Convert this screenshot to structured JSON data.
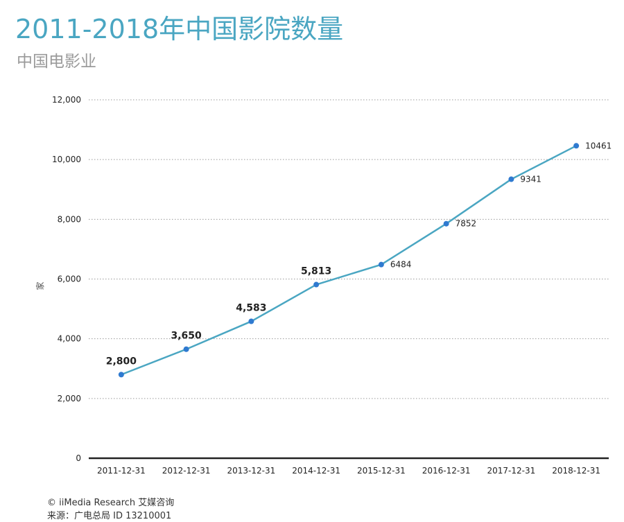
{
  "header": {
    "title": "2011-2018年中国影院数量",
    "subtitle": "中国电影业"
  },
  "footer": {
    "copyright": "© iiMedia Research 艾媒咨询",
    "source": "来源：广电总局  ID 13210001"
  },
  "chart_data": {
    "type": "line",
    "title": "2011-2018年中国影院数量",
    "subtitle": "中国电影业",
    "ylabel": "家",
    "xlabel": "",
    "ylim": [
      0,
      12000
    ],
    "y_ticks": [
      0,
      2000,
      4000,
      6000,
      8000,
      10000,
      12000
    ],
    "y_tick_labels": [
      "0",
      "2,000",
      "4,000",
      "6,000",
      "8,000",
      "10,000",
      "12,000"
    ],
    "categories": [
      "2011-12-31",
      "2012-12-31",
      "2013-12-31",
      "2014-12-31",
      "2015-12-31",
      "2016-12-31",
      "2017-12-31",
      "2018-12-31"
    ],
    "series": [
      {
        "values": [
          2800,
          3650,
          4583,
          5813,
          6484,
          7852,
          9341,
          10461
        ],
        "data_labels": [
          "2,800",
          "3,650",
          "4,583",
          "5,813",
          "6484",
          "7852",
          "9341",
          "10461"
        ]
      }
    ],
    "grid": "horizontal dotted",
    "colors": {
      "line": "#4aa6c2",
      "marker": "#2f7ad0",
      "grid": "#9a9a9a",
      "axis": "#222222",
      "label": "#222222"
    }
  }
}
